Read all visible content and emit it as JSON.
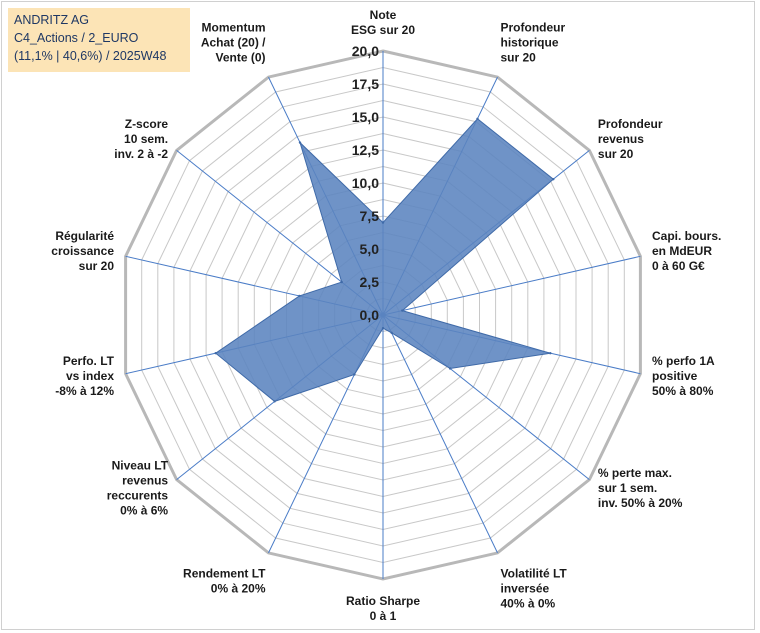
{
  "info": {
    "line1": "ANDRITZ AG",
    "line2": "C4_Actions / 2_EURO",
    "line3": "(11,1% | 40,6%) / 2025W48"
  },
  "colors": {
    "fill": "#5b84bf",
    "stroke": "#3f6aa8",
    "ring": "#c8c8c8",
    "outer": "#b8b8b8",
    "spoke": "#4a7cc7"
  },
  "chart_data": {
    "type": "radar",
    "range": [
      0,
      20
    ],
    "tick_labels": [
      "0,0",
      "2,5",
      "5,0",
      "7,5",
      "10,0",
      "12,5",
      "15,0",
      "17,5",
      "20,0"
    ],
    "axes": [
      {
        "label": [
          "Note",
          "ESG sur 20"
        ],
        "value": 7.0
      },
      {
        "label": [
          "Profondeur",
          "historique",
          "sur 20"
        ],
        "value": 16.5
      },
      {
        "label": [
          "Profondeur",
          "revenus",
          "sur 20"
        ],
        "value": 16.5
      },
      {
        "label": [
          "Capi. bours.",
          "en MdEUR",
          "0 à 60 G€"
        ],
        "value": 1.5
      },
      {
        "label": [
          "% perfo 1A",
          "positive",
          "50% à 80%"
        ],
        "value": 13.0
      },
      {
        "label": [
          "% perte max.",
          "sur 1 sem.",
          "inv. 50% à 20%"
        ],
        "value": 6.5
      },
      {
        "label": [
          "Volatilité LT",
          "inversée",
          "40% à 0%"
        ],
        "value": 1.5
      },
      {
        "label": [
          "Ratio Sharpe",
          "0 à 1"
        ],
        "value": 1.0
      },
      {
        "label": [
          "Rendement LT",
          "0% à 20%"
        ],
        "value": 5.0
      },
      {
        "label": [
          "Niveau LT",
          "revenus",
          "reccurents",
          "0% à 6%"
        ],
        "value": 10.5
      },
      {
        "label": [
          "Perfo. LT",
          "vs index",
          "-8% à 12%"
        ],
        "value": 13.0
      },
      {
        "label": [
          "Régularité",
          "croissance",
          "sur 20"
        ],
        "value": 6.5
      },
      {
        "label": [
          "Z-score",
          "10 sem.",
          "inv. 2 à -2"
        ],
        "value": 4.0
      },
      {
        "label": [
          "Momentum",
          "Achat (20) /",
          "Vente (0)"
        ],
        "value": 14.5
      }
    ]
  }
}
